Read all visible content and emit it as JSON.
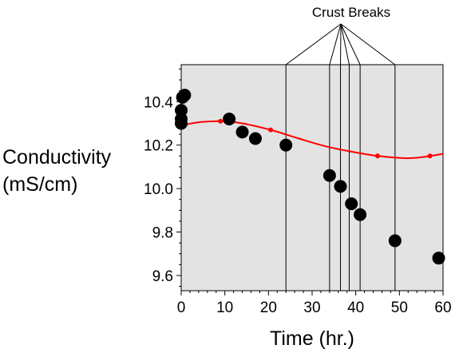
{
  "chart_data": {
    "type": "scatter",
    "xlabel": "Time (hr.)",
    "ylabel_lines": [
      "Conductivity",
      "(mS/cm)"
    ],
    "xlim": [
      0,
      60
    ],
    "ylim": [
      9.53,
      10.57
    ],
    "x_ticks": [
      0,
      10,
      20,
      30,
      40,
      50,
      60
    ],
    "y_ticks": [
      9.6,
      9.8,
      10.0,
      10.2,
      10.4
    ],
    "y_tick_labels": [
      "9.6",
      "9.8",
      "10.0",
      "10.2",
      "10.4"
    ],
    "grid": false,
    "plot_background": "#e3e3e3",
    "series": [
      {
        "type": "scatter",
        "color": "#000000",
        "points": [
          {
            "x": 0.0,
            "y": 10.3
          },
          {
            "x": 0.0,
            "y": 10.32
          },
          {
            "x": 0.0,
            "y": 10.36
          },
          {
            "x": 0.3,
            "y": 10.42
          },
          {
            "x": 0.8,
            "y": 10.43
          },
          {
            "x": 11.0,
            "y": 10.32
          },
          {
            "x": 14.0,
            "y": 10.26
          },
          {
            "x": 17.0,
            "y": 10.23
          },
          {
            "x": 24.0,
            "y": 10.2
          },
          {
            "x": 34.0,
            "y": 10.06
          },
          {
            "x": 36.5,
            "y": 10.01
          },
          {
            "x": 39.0,
            "y": 9.93
          },
          {
            "x": 41.0,
            "y": 9.88
          },
          {
            "x": 49.0,
            "y": 9.76
          },
          {
            "x": 59.0,
            "y": 9.68
          }
        ]
      },
      {
        "type": "line",
        "color": "#ff0000",
        "points": [
          {
            "x": 0,
            "y": 10.29
          },
          {
            "x": 4,
            "y": 10.305
          },
          {
            "x": 9,
            "y": 10.31
          },
          {
            "x": 14,
            "y": 10.3
          },
          {
            "x": 20.5,
            "y": 10.27
          },
          {
            "x": 27,
            "y": 10.23
          },
          {
            "x": 33,
            "y": 10.195
          },
          {
            "x": 39,
            "y": 10.17
          },
          {
            "x": 45,
            "y": 10.15
          },
          {
            "x": 51,
            "y": 10.14
          },
          {
            "x": 54,
            "y": 10.142
          },
          {
            "x": 57,
            "y": 10.15
          },
          {
            "x": 60,
            "y": 10.16
          }
        ],
        "markers": [
          {
            "x": 9,
            "y": 10.31
          },
          {
            "x": 20.5,
            "y": 10.27
          },
          {
            "x": 45,
            "y": 10.15
          },
          {
            "x": 57,
            "y": 10.15
          }
        ]
      }
    ],
    "annotation": {
      "text": "Crust Breaks",
      "break_times": [
        24,
        34,
        36.5,
        38.5,
        41,
        49
      ]
    }
  }
}
